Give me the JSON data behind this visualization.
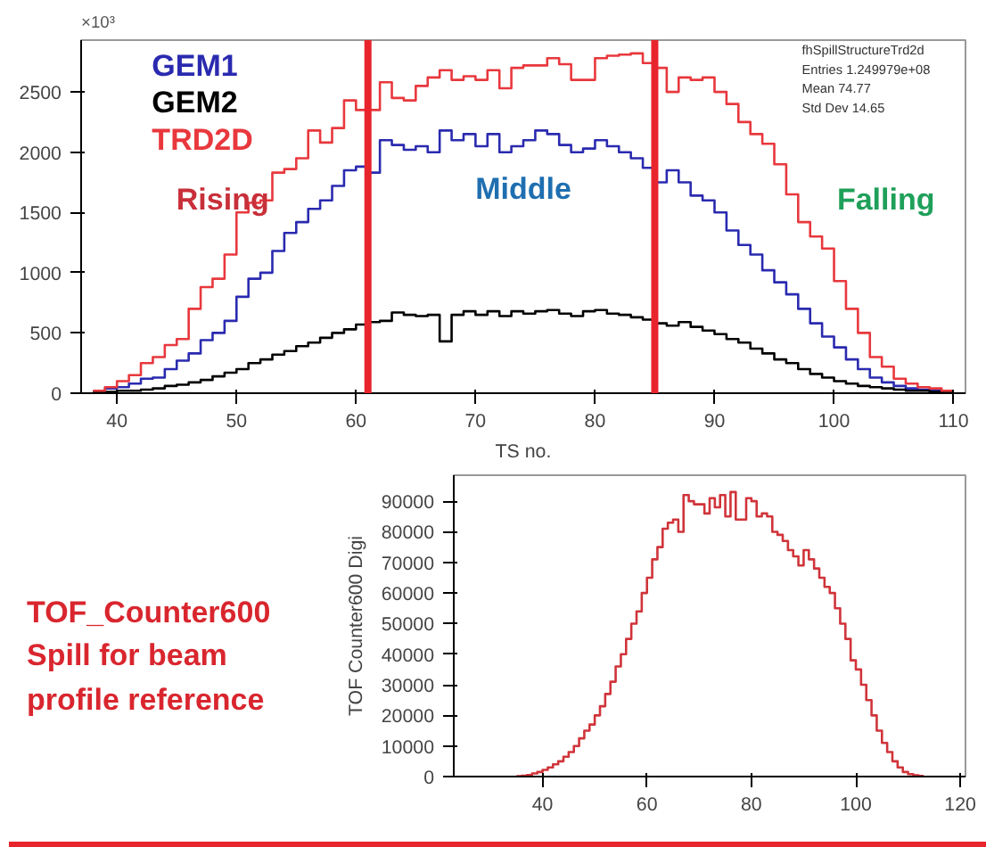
{
  "chart_data": [
    {
      "type": "histogram",
      "xlabel": "TS no.",
      "legend": "top left",
      "grid": false,
      "xlim": [
        37,
        111
      ],
      "xticks": [
        40,
        50,
        60,
        70,
        80,
        90,
        100,
        110
      ],
      "ylim": [
        0,
        2930
      ],
      "yticks": [
        0,
        500,
        1000,
        1500,
        2000,
        2500
      ],
      "bins": [
        38,
        39,
        40,
        41,
        42,
        43,
        44,
        45,
        46,
        47,
        48,
        49,
        50,
        51,
        52,
        53,
        54,
        55,
        56,
        57,
        58,
        59,
        60,
        61,
        62,
        63,
        64,
        65,
        66,
        67,
        68,
        69,
        70,
        71,
        72,
        73,
        74,
        75,
        76,
        77,
        78,
        79,
        80,
        81,
        82,
        83,
        84,
        85,
        86,
        87,
        88,
        89,
        90,
        91,
        92,
        93,
        94,
        95,
        96,
        97,
        98,
        99,
        100,
        101,
        102,
        103,
        104,
        105,
        106,
        107,
        108,
        109,
        110
      ],
      "series": [
        {
          "name": "GEM1",
          "color": "#2a2ab0",
          "values": [
            10,
            40,
            50,
            80,
            120,
            130,
            200,
            270,
            330,
            440,
            500,
            600,
            800,
            950,
            1000,
            1180,
            1330,
            1420,
            1530,
            1600,
            1720,
            1850,
            1880,
            1830,
            2100,
            2060,
            2020,
            2050,
            2000,
            2180,
            2100,
            2150,
            2050,
            2150,
            2000,
            2050,
            2100,
            2180,
            2150,
            2060,
            2000,
            2030,
            2100,
            2050,
            2000,
            1950,
            1870,
            1750,
            1850,
            1750,
            1640,
            1600,
            1500,
            1350,
            1230,
            1150,
            1020,
            920,
            820,
            700,
            580,
            470,
            380,
            280,
            200,
            130,
            90,
            60,
            40,
            30,
            20,
            10
          ]
        },
        {
          "name": "GEM2",
          "color": "#000000",
          "values": [
            10,
            10,
            20,
            20,
            30,
            40,
            60,
            70,
            90,
            110,
            140,
            170,
            200,
            250,
            280,
            320,
            350,
            390,
            420,
            460,
            500,
            530,
            570,
            590,
            600,
            670,
            650,
            640,
            650,
            430,
            650,
            680,
            650,
            680,
            640,
            680,
            660,
            680,
            690,
            660,
            640,
            680,
            690,
            660,
            650,
            630,
            610,
            580,
            560,
            590,
            550,
            520,
            490,
            450,
            420,
            370,
            330,
            280,
            250,
            200,
            160,
            130,
            100,
            80,
            60,
            50,
            40,
            30,
            20,
            20,
            10,
            10
          ]
        },
        {
          "name": "TRD2D",
          "color": "#e8383d",
          "values": [
            20,
            50,
            100,
            150,
            250,
            300,
            400,
            450,
            700,
            880,
            950,
            1150,
            1500,
            1580,
            1600,
            1830,
            1860,
            1950,
            2180,
            2080,
            2200,
            2430,
            2350,
            2350,
            2580,
            2450,
            2430,
            2550,
            2620,
            2680,
            2600,
            2630,
            2600,
            2680,
            2530,
            2700,
            2720,
            2720,
            2780,
            2730,
            2600,
            2600,
            2780,
            2800,
            2810,
            2820,
            2740,
            2700,
            2500,
            2620,
            2600,
            2620,
            2500,
            2400,
            2250,
            2150,
            2070,
            1900,
            1650,
            1420,
            1300,
            1200,
            930,
            700,
            500,
            300,
            220,
            120,
            80,
            50,
            40,
            20
          ]
        }
      ],
      "ref_lines": [
        {
          "axis": "x",
          "value": 61,
          "color": "#e8242c"
        },
        {
          "axis": "x",
          "value": 85,
          "color": "#e8242c"
        }
      ],
      "annotations": [
        "×10³",
        "Rising",
        "Middle",
        "Falling",
        "fhSpillStructureTrd2d",
        "Entries 1.249979e+08",
        "Mean 74.77",
        "Std Dev 14.65"
      ]
    },
    {
      "type": "histogram",
      "ylabel": "TOF Counter600 Digi",
      "grid": false,
      "xlim": [
        23,
        121
      ],
      "xticks": [
        40,
        60,
        80,
        100,
        120
      ],
      "ylim": [
        0,
        98500
      ],
      "yticks": [
        0,
        10000,
        20000,
        30000,
        40000,
        50000,
        60000,
        70000,
        80000,
        90000
      ],
      "bins": [
        35,
        36,
        37,
        38,
        39,
        40,
        41,
        42,
        43,
        44,
        45,
        46,
        47,
        48,
        49,
        50,
        51,
        52,
        53,
        54,
        55,
        56,
        57,
        58,
        59,
        60,
        61,
        62,
        63,
        64,
        65,
        66,
        67,
        68,
        69,
        70,
        71,
        72,
        73,
        74,
        75,
        76,
        77,
        78,
        79,
        80,
        81,
        82,
        83,
        84,
        85,
        86,
        87,
        88,
        89,
        90,
        91,
        92,
        93,
        94,
        95,
        96,
        97,
        98,
        99,
        100,
        101,
        102,
        103,
        104,
        105,
        106,
        107,
        108,
        109,
        110,
        111,
        112,
        113
      ],
      "series": [
        {
          "color": "#d0343a",
          "values": [
            100,
            300,
            500,
            1000,
            1500,
            2200,
            3000,
            4000,
            5000,
            6500,
            8000,
            10000,
            12500,
            15000,
            17000,
            20000,
            23000,
            27000,
            31000,
            36000,
            40000,
            45000,
            50000,
            54000,
            60000,
            65000,
            71000,
            75000,
            81000,
            83000,
            84000,
            80000,
            92000,
            90000,
            89000,
            89000,
            86000,
            91000,
            88000,
            92000,
            85000,
            93000,
            84000,
            84000,
            91000,
            90000,
            85000,
            86000,
            85000,
            80000,
            79000,
            77000,
            74000,
            72000,
            69000,
            74000,
            71000,
            68000,
            65000,
            62000,
            60000,
            55000,
            50000,
            45000,
            38000,
            35000,
            30000,
            25000,
            20000,
            15000,
            11000,
            8000,
            5000,
            3000,
            1500,
            800,
            400,
            200
          ]
        }
      ],
      "annotations": [
        "TOF_Counter600\nSpill for beam\nprofile reference"
      ]
    }
  ]
}
